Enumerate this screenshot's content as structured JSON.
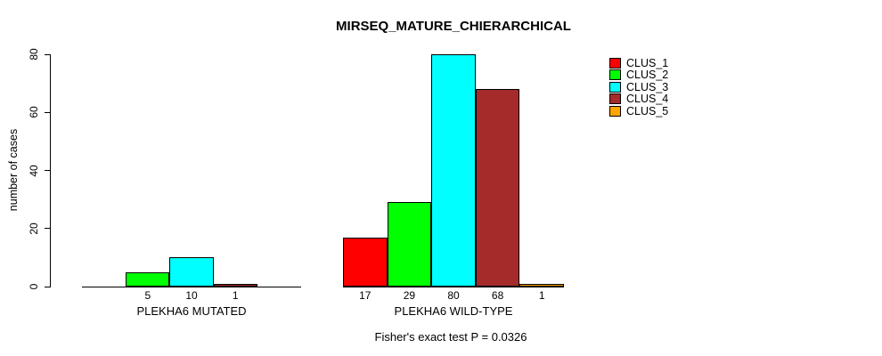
{
  "title": "MIRSEQ_MATURE_CHIERARCHICAL",
  "footer": "Fisher's exact test P = 0.0326",
  "chart_data": {
    "type": "bar",
    "title": "MIRSEQ_MATURE_CHIERARCHICAL",
    "xlabel": "",
    "ylabel": "number of cases",
    "ylim": [
      0,
      80
    ],
    "yticks": [
      "0",
      "20",
      "40",
      "60",
      "80"
    ],
    "grid": false,
    "legend_position": "right",
    "bar_value_labels": "non-zero bar values printed below each bar",
    "categories": [
      "PLEKHA6 MUTATED",
      "PLEKHA6 WILD-TYPE"
    ],
    "series": [
      {
        "name": "CLUS_1",
        "color": "#ff0000",
        "values": [
          0,
          17
        ]
      },
      {
        "name": "CLUS_2",
        "color": "#00ff00",
        "values": [
          5,
          29
        ]
      },
      {
        "name": "CLUS_3",
        "color": "#00ffff",
        "values": [
          10,
          80
        ]
      },
      {
        "name": "CLUS_4",
        "color": "#a52a2a",
        "values": [
          1,
          68
        ]
      },
      {
        "name": "CLUS_5",
        "color": "#ffa500",
        "values": [
          0,
          1
        ]
      }
    ],
    "annotation": "Fisher's exact test P = 0.0326"
  }
}
